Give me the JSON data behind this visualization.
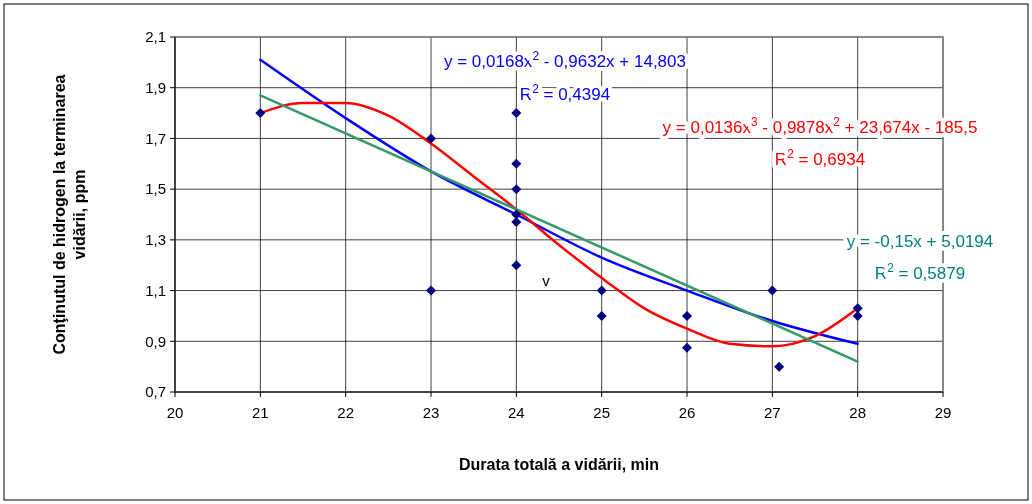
{
  "chart_data": {
    "type": "scatter",
    "xlabel": "Durata totală a vidării, min",
    "ylabel": "Conţinutul de hidrogen la terminarea\nvidării, ppm",
    "xlim": [
      20,
      29
    ],
    "xticks": [
      20,
      21,
      22,
      23,
      24,
      25,
      26,
      27,
      28,
      29
    ],
    "ylim": [
      0.7,
      2.1
    ],
    "yticks": [
      {
        "value": 0.7,
        "label": "0,7"
      },
      {
        "value": 0.9,
        "label": "0,9"
      },
      {
        "value": 1.1,
        "label": "1,1"
      },
      {
        "value": 1.3,
        "label": "1,3"
      },
      {
        "value": 1.5,
        "label": "1,5"
      },
      {
        "value": 1.7,
        "label": "1,7"
      },
      {
        "value": 1.9,
        "label": "1,9"
      },
      {
        "value": 2.1,
        "label": "2,1"
      }
    ],
    "grid": true,
    "series": [
      {
        "marker": "diamond",
        "color": "#000080",
        "x": [
          21,
          23,
          23,
          24,
          24,
          24,
          24,
          24,
          24,
          25,
          25,
          26,
          26,
          27,
          27.08,
          28,
          28
        ],
        "values": [
          1.8,
          1.7,
          1.1,
          1.8,
          1.6,
          1.5,
          1.4,
          1.37,
          1.2,
          1.1,
          1.0,
          1.0,
          0.875,
          1.1,
          0.8,
          1.03,
          1.0
        ]
      },
      {
        "type": "line",
        "marker": "none",
        "color": "#0000ff",
        "x": [
          21,
          22,
          23,
          24,
          25,
          26,
          27,
          28
        ],
        "values": [
          2.01,
          1.78,
          1.57,
          1.4,
          1.23,
          1.1,
          0.98,
          0.89
        ]
      },
      {
        "type": "line",
        "marker": "none",
        "color": "#ff0000",
        "x": [
          21,
          21.5,
          22,
          22.5,
          23,
          23.5,
          24,
          24.5,
          25,
          25.5,
          26,
          26.5,
          27,
          27.5,
          28
        ],
        "values": [
          1.8,
          1.84,
          1.84,
          1.79,
          1.68,
          1.55,
          1.42,
          1.28,
          1.15,
          1.03,
          0.95,
          0.89,
          0.88,
          0.92,
          1.03
        ]
      },
      {
        "type": "line",
        "marker": "none",
        "color": "#339966",
        "x": [
          21,
          28
        ],
        "values": [
          1.87,
          0.82
        ]
      }
    ],
    "annotations": [
      "y = 0,0168x$^{2}$ - 0,9632x + 14,803",
      "R$^{2}$ = 0,4394",
      "y = 0,0136x$^{3}$ - 0,9878x$^{2}$ + 23,674x - 185,5",
      "R$^{2}$ = 0,6934",
      "y = -0,15x + 5,0194",
      "R$^{2}$ = 0,5879",
      "v"
    ]
  }
}
